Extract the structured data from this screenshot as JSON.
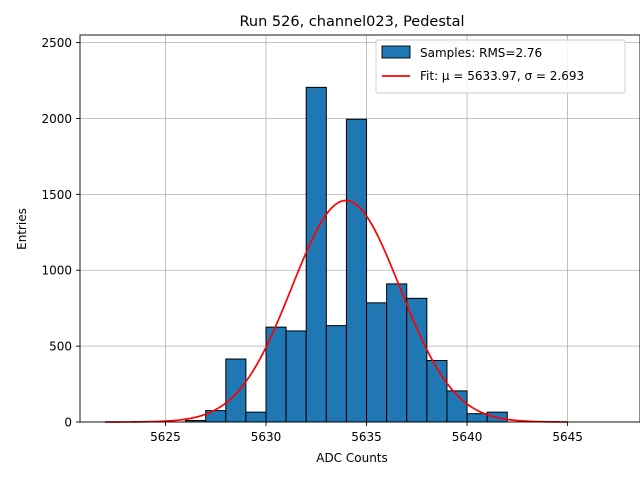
{
  "chart_data": {
    "type": "bar",
    "title": "Run 526, channel023, Pedestal",
    "xlabel": "ADC Counts",
    "ylabel": "Entries",
    "xlim": [
      620.0,
      5648.6
    ],
    "xlim_note": "",
    "x_range": [
      5620.75,
      5648.6
    ],
    "ylim": [
      0,
      2550
    ],
    "grid": true,
    "legend_position": "top-right",
    "x_ticks": [
      5625,
      5630,
      5635,
      5640,
      5645
    ],
    "y_ticks": [
      0,
      500,
      1000,
      1500,
      2000,
      2500
    ],
    "histogram": {
      "name": "Samples: RMS=2.76",
      "color": "#1f77b4",
      "edgecolor": "#000000",
      "bin_edges": [
        5626.0,
        5627.0,
        5628.0,
        5629.0,
        5630.0,
        5631.0,
        5632.0,
        5633.0,
        5634.0,
        5635.0,
        5636.0,
        5637.0,
        5638.0,
        5639.0,
        5640.0,
        5641.0,
        5642.0
      ],
      "counts": [
        10,
        75,
        415,
        65,
        625,
        600,
        2205,
        635,
        1995,
        785,
        910,
        815,
        405,
        205,
        55,
        65
      ]
    },
    "fit": {
      "name": "Fit: μ = 5633.97, σ = 2.693",
      "color": "#ff0000",
      "mu": 5633.97,
      "sigma": 2.693,
      "amplitude": 1460,
      "x_start": 5622.0,
      "x_end": 5645.0
    }
  }
}
